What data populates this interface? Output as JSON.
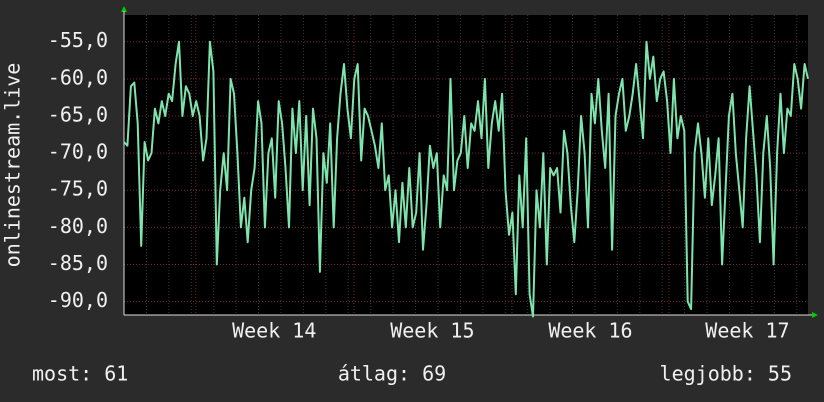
{
  "chart_data": {
    "type": "line",
    "y_label": "onlinestream.live",
    "color": "#7fe3ad",
    "grid": true,
    "ylim": [
      -91.8,
      -51.4
    ],
    "yticks": [
      {
        "value": -90,
        "label": "-90,0"
      },
      {
        "value": -85,
        "label": "-85,0"
      },
      {
        "value": -80,
        "label": "-80,0"
      },
      {
        "value": -75,
        "label": "-75,0"
      },
      {
        "value": -70,
        "label": "-70,0"
      },
      {
        "value": -65,
        "label": "-65,0"
      },
      {
        "value": -60,
        "label": "-60,0"
      },
      {
        "value": -55,
        "label": "-55,0"
      }
    ],
    "xlim": [
      0,
      30.5
    ],
    "xticks": [
      {
        "value": 6.7,
        "label": "Week 14"
      },
      {
        "value": 13.75,
        "label": "Week 15"
      },
      {
        "value": 20.8,
        "label": "Week 16"
      },
      {
        "value": 27.8,
        "label": "Week 17"
      }
    ],
    "values": [
      -68.5,
      -69,
      -61,
      -60.5,
      -66,
      -82.5,
      -68.5,
      -71,
      -70,
      -64,
      -66,
      -63,
      -65,
      -62,
      -63,
      -58,
      -55,
      -65,
      -61,
      -62,
      -65,
      -63,
      -65,
      -71,
      -68,
      -55,
      -59,
      -85,
      -75,
      -70,
      -75,
      -60,
      -62,
      -70,
      -80,
      -76,
      -82,
      -75,
      -72,
      -63,
      -66,
      -80,
      -70,
      -68,
      -76,
      -63,
      -66,
      -72,
      -80,
      -64,
      -70,
      -63,
      -75,
      -65,
      -77,
      -64,
      -68,
      -86,
      -70,
      -74,
      -66,
      -80,
      -68,
      -62,
      -58,
      -64,
      -68,
      -60,
      -58,
      -71,
      -64,
      -65,
      -67,
      -69,
      -72,
      -66,
      -75,
      -73,
      -80,
      -75,
      -82,
      -74,
      -80,
      -72,
      -80,
      -78,
      -70,
      -83,
      -77,
      -69,
      -72,
      -70,
      -80,
      -73,
      -75,
      -60,
      -75,
      -71,
      -70,
      -65,
      -72,
      -66,
      -67,
      -63,
      -68,
      -60,
      -72,
      -66,
      -63,
      -67,
      -62,
      -75,
      -81,
      -78,
      -89,
      -73,
      -80,
      -68,
      -89,
      -92,
      -75,
      -80,
      -70,
      -85,
      -72,
      -73,
      -72,
      -78,
      -67,
      -70,
      -77,
      -82,
      -75,
      -65,
      -70,
      -80,
      -62,
      -66,
      -60,
      -67,
      -72,
      -62,
      -83,
      -65,
      -62,
      -60,
      -67,
      -65,
      -62,
      -58,
      -63,
      -68,
      -55,
      -60,
      -57,
      -63,
      -60,
      -59,
      -63,
      -70,
      -60,
      -68,
      -65,
      -67,
      -90,
      -91,
      -70,
      -66,
      -70,
      -76,
      -68,
      -77,
      -73,
      -68,
      -85,
      -75,
      -65,
      -62,
      -70,
      -75,
      -80,
      -68,
      -61,
      -67,
      -73,
      -82,
      -70,
      -65,
      -72,
      -85,
      -70,
      -62,
      -70,
      -64,
      -65,
      -58,
      -60,
      -64,
      -58,
      -60
    ],
    "footer": [
      "most: 61",
      "átlag: 69",
      "legjobb: 55"
    ]
  }
}
